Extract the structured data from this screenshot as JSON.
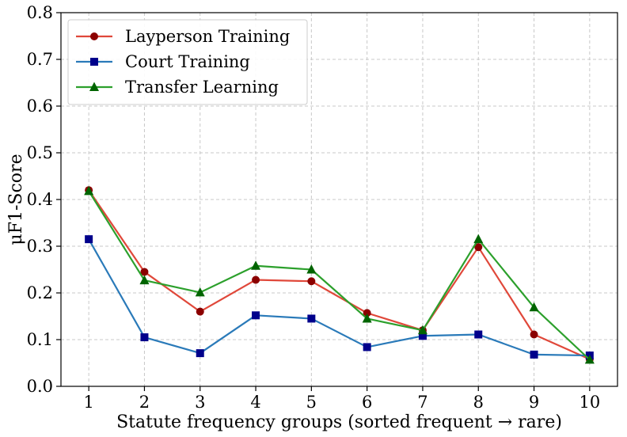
{
  "chart_data": {
    "type": "line",
    "title": "",
    "xlabel": "Statute frequency groups (sorted frequent → rare)",
    "ylabel": "μF1-Score",
    "x": [
      1,
      2,
      3,
      4,
      5,
      6,
      7,
      8,
      9,
      10
    ],
    "x_tick_labels": [
      "1",
      "2",
      "3",
      "4",
      "5",
      "6",
      "7",
      "8",
      "9",
      "10"
    ],
    "xlim": [
      0.5,
      10.5
    ],
    "ylim": [
      0.0,
      0.8
    ],
    "y_ticks": [
      0.0,
      0.1,
      0.2,
      0.3,
      0.4,
      0.5,
      0.6,
      0.7,
      0.8
    ],
    "y_tick_labels": [
      "0.0",
      "0.1",
      "0.2",
      "0.3",
      "0.4",
      "0.5",
      "0.6",
      "0.7",
      "0.8"
    ],
    "grid": true,
    "legend_position": "top-left",
    "series": [
      {
        "name": "Layperson Training",
        "line_color": "#e0483a",
        "marker_color": "#8b0000",
        "marker": "circle",
        "values": [
          0.42,
          0.245,
          0.16,
          0.228,
          0.225,
          0.157,
          0.12,
          0.298,
          0.111,
          0.058
        ]
      },
      {
        "name": "Court Training",
        "line_color": "#2a7ab9",
        "marker_color": "#00008b",
        "marker": "square",
        "values": [
          0.315,
          0.105,
          0.071,
          0.152,
          0.145,
          0.084,
          0.108,
          0.111,
          0.068,
          0.066
        ]
      },
      {
        "name": "Transfer Learning",
        "line_color": "#2ca02c",
        "marker_color": "#006400",
        "marker": "triangle",
        "values": [
          0.418,
          0.227,
          0.201,
          0.258,
          0.25,
          0.145,
          0.12,
          0.315,
          0.169,
          0.057
        ]
      }
    ]
  }
}
